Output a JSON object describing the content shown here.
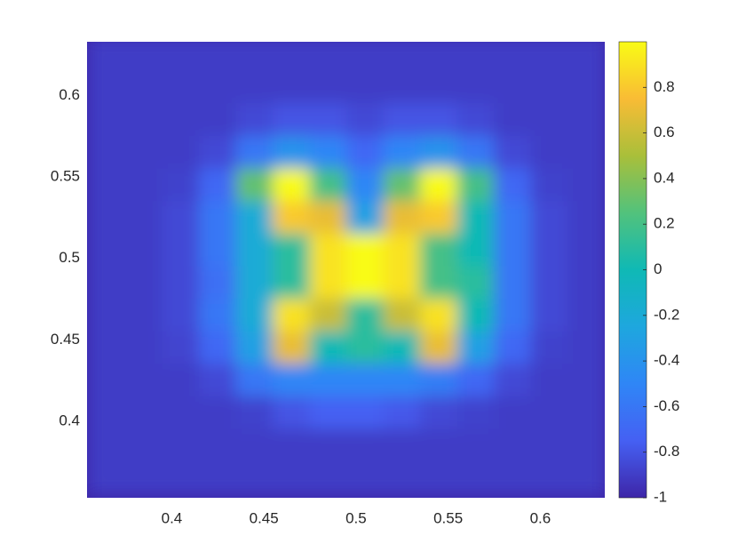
{
  "chart_data": {
    "type": "heatmap",
    "x": [
      0.365,
      0.385,
      0.405,
      0.425,
      0.445,
      0.465,
      0.485,
      0.505,
      0.525,
      0.545,
      0.565,
      0.585,
      0.605,
      0.625
    ],
    "y": [
      0.625,
      0.605,
      0.585,
      0.565,
      0.545,
      0.525,
      0.505,
      0.485,
      0.465,
      0.445,
      0.425,
      0.405,
      0.385,
      0.365
    ],
    "z": [
      [
        -0.9,
        -0.9,
        -0.9,
        -0.9,
        -0.9,
        -0.9,
        -0.9,
        -0.9,
        -0.9,
        -0.9,
        -0.9,
        -0.9,
        -0.9,
        -0.9
      ],
      [
        -0.9,
        -0.9,
        -0.9,
        -0.9,
        -0.9,
        -0.9,
        -0.9,
        -0.9,
        -0.9,
        -0.9,
        -0.9,
        -0.9,
        -0.9,
        -0.9
      ],
      [
        -0.9,
        -0.9,
        -0.9,
        -0.9,
        -0.85,
        -0.8,
        -0.8,
        -0.85,
        -0.8,
        -0.8,
        -0.85,
        -0.9,
        -0.9,
        -0.9
      ],
      [
        -0.9,
        -0.9,
        -0.9,
        -0.85,
        -0.6,
        -0.4,
        -0.5,
        -0.7,
        -0.5,
        -0.4,
        -0.6,
        -0.85,
        -0.9,
        -0.9
      ],
      [
        -0.9,
        -0.9,
        -0.88,
        -0.7,
        0.3,
        1,
        0.2,
        -0.5,
        0.3,
        1,
        0.2,
        -0.7,
        -0.88,
        -0.9
      ],
      [
        -0.9,
        -0.9,
        -0.85,
        -0.6,
        -0.2,
        0.8,
        0.7,
        -0.3,
        0.7,
        0.8,
        0,
        -0.6,
        -0.85,
        -0.9
      ],
      [
        -0.9,
        -0.9,
        -0.85,
        -0.6,
        -0.2,
        0.1,
        0.9,
        1,
        0.9,
        0.2,
        0,
        -0.6,
        -0.85,
        -0.9
      ],
      [
        -0.9,
        -0.9,
        -0.85,
        -0.65,
        -0.2,
        0.1,
        0.9,
        1,
        0.9,
        0.2,
        0.1,
        -0.6,
        -0.85,
        -0.9
      ],
      [
        -0.9,
        -0.9,
        -0.85,
        -0.6,
        -0.2,
        0.9,
        0.6,
        0.1,
        0.6,
        0.9,
        0,
        -0.6,
        -0.85,
        -0.9
      ],
      [
        -0.9,
        -0.9,
        -0.87,
        -0.7,
        -0.3,
        0.7,
        0,
        0.1,
        0,
        0.7,
        -0.3,
        -0.7,
        -0.88,
        -0.9
      ],
      [
        -0.9,
        -0.9,
        -0.9,
        -0.85,
        -0.6,
        -0.5,
        -0.5,
        -0.5,
        -0.5,
        -0.55,
        -0.7,
        -0.85,
        -0.9,
        -0.9
      ],
      [
        -0.9,
        -0.9,
        -0.9,
        -0.9,
        -0.88,
        -0.8,
        -0.75,
        -0.75,
        -0.78,
        -0.85,
        -0.88,
        -0.9,
        -0.9,
        -0.9
      ],
      [
        -0.9,
        -0.9,
        -0.9,
        -0.9,
        -0.9,
        -0.9,
        -0.9,
        -0.9,
        -0.9,
        -0.9,
        -0.9,
        -0.9,
        -0.9,
        -0.9
      ],
      [
        -0.9,
        -0.9,
        -0.9,
        -0.9,
        -0.9,
        -0.9,
        -0.9,
        -0.9,
        -0.9,
        -0.9,
        -0.9,
        -0.9,
        -0.9,
        -0.9
      ]
    ],
    "xlim": [
      0.354,
      0.635
    ],
    "ylim": [
      0.353,
      0.633
    ],
    "xticks": [
      0.4,
      0.45,
      0.5,
      0.55,
      0.6
    ],
    "yticks": [
      0.4,
      0.45,
      0.5,
      0.55,
      0.6
    ],
    "clim": [
      -1,
      1
    ],
    "colorbar_ticks": [
      -1,
      -0.8,
      -0.6,
      -0.4,
      -0.2,
      0,
      0.2,
      0.4,
      0.6,
      0.8
    ],
    "colormap": [
      "#3e26a8",
      "#4560f3",
      "#2f86f6",
      "#1ea7de",
      "#0fb9b5",
      "#52c27c",
      "#a9bf3a",
      "#f9bc35",
      "#f9fb15"
    ]
  }
}
